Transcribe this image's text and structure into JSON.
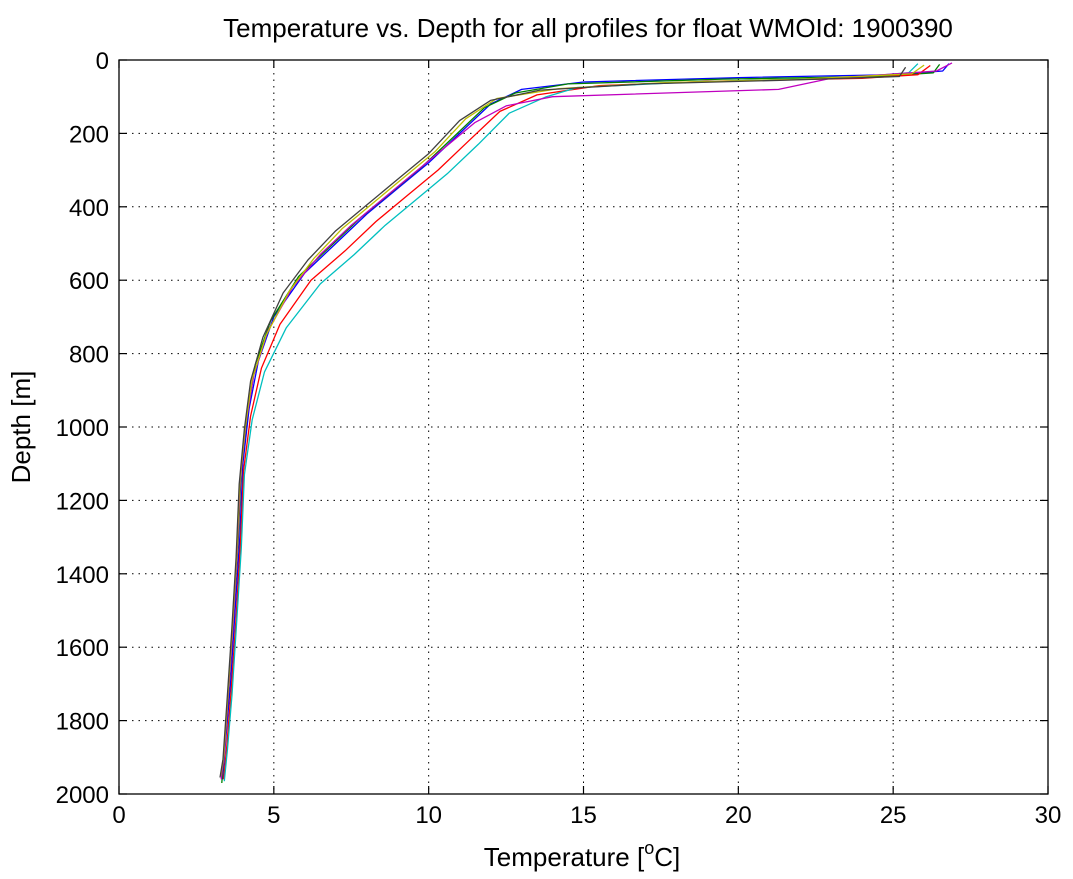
{
  "chart_data": {
    "type": "line",
    "title": "Temperature vs. Depth for all profiles for float WMOId: 1900390",
    "xlabel": "Temperature [",
    "xlabel_sup": "o",
    "xlabel_end": "C]",
    "ylabel": "Depth [m]",
    "xlim": [
      0,
      30
    ],
    "ylim": [
      0,
      2000
    ],
    "y_reversed": true,
    "grid": true,
    "x_ticks": [
      0,
      5,
      10,
      15,
      20,
      25,
      30
    ],
    "y_ticks": [
      0,
      200,
      400,
      600,
      800,
      1000,
      1200,
      1400,
      1600,
      1800,
      2000
    ],
    "x_tick_labels": [
      "0",
      "5",
      "10",
      "15",
      "20",
      "25",
      "30"
    ],
    "y_tick_labels": [
      "0",
      "200",
      "400",
      "600",
      "800",
      "1000",
      "1200",
      "1400",
      "1600",
      "1800",
      "2000"
    ],
    "series_colors": [
      "#0000ff",
      "#008000",
      "#ff0000",
      "#00bfbf",
      "#bf00bf",
      "#bfbf00",
      "#404040"
    ],
    "series": [
      {
        "x": [
          26.8,
          26.6,
          25.0,
          20.0,
          15.0,
          13.0,
          12.0,
          11.0,
          10.0,
          9.0,
          8.0,
          7.0,
          6.0,
          5.0,
          4.5,
          4.2,
          4.0,
          3.9,
          3.75,
          3.6,
          3.45,
          3.35
        ],
        "y": [
          10,
          30,
          40,
          48,
          60,
          80,
          120,
          200,
          280,
          350,
          420,
          500,
          580,
          700,
          820,
          950,
          1100,
          1300,
          1500,
          1700,
          1850,
          1960
        ]
      },
      {
        "x": [
          26.5,
          26.3,
          24.5,
          19.5,
          14.5,
          12.8,
          11.8,
          10.8,
          9.8,
          8.8,
          7.8,
          6.8,
          5.8,
          4.9,
          4.4,
          4.15,
          3.95,
          3.85,
          3.7,
          3.55,
          3.42,
          3.32
        ],
        "y": [
          12,
          35,
          45,
          52,
          65,
          90,
          130,
          210,
          290,
          360,
          430,
          510,
          590,
          710,
          830,
          960,
          1110,
          1310,
          1510,
          1710,
          1860,
          1970
        ]
      },
      {
        "x": [
          26.2,
          25.8,
          24.0,
          19.0,
          15.5,
          13.5,
          12.3,
          11.3,
          10.3,
          9.3,
          8.3,
          7.3,
          6.2,
          5.2,
          4.6,
          4.25,
          4.02,
          3.92,
          3.78,
          3.62,
          3.48,
          3.38
        ],
        "y": [
          15,
          40,
          50,
          58,
          70,
          95,
          140,
          220,
          300,
          370,
          440,
          520,
          600,
          720,
          840,
          970,
          1120,
          1320,
          1520,
          1720,
          1870,
          1960
        ]
      },
      {
        "x": [
          25.8,
          25.5,
          23.5,
          18.5,
          14.8,
          13.8,
          12.6,
          11.6,
          10.6,
          9.6,
          8.6,
          7.6,
          6.5,
          5.4,
          4.7,
          4.3,
          4.05,
          3.95,
          3.8,
          3.65,
          3.5,
          3.4
        ],
        "y": [
          10,
          35,
          48,
          60,
          75,
          100,
          145,
          230,
          310,
          380,
          450,
          530,
          610,
          730,
          850,
          980,
          1130,
          1330,
          1530,
          1730,
          1880,
          1965
        ]
      },
      {
        "x": [
          26.9,
          26.4,
          23.0,
          21.3,
          14.0,
          12.5,
          11.5,
          10.5,
          9.5,
          8.5,
          7.5,
          6.5,
          5.6,
          4.8,
          4.35,
          4.1,
          3.92,
          3.82,
          3.68,
          3.52,
          3.4,
          3.3
        ],
        "y": [
          8,
          30,
          50,
          80,
          100,
          125,
          170,
          240,
          310,
          380,
          450,
          530,
          620,
          740,
          860,
          990,
          1140,
          1340,
          1540,
          1740,
          1890,
          1960
        ]
      },
      {
        "x": [
          26.0,
          25.6,
          22.0,
          17.5,
          14.2,
          12.2,
          11.2,
          10.2,
          9.2,
          8.2,
          7.2,
          6.3,
          5.5,
          4.75,
          4.3,
          4.08,
          3.9,
          3.8,
          3.66,
          3.5,
          3.38,
          3.28
        ],
        "y": [
          14,
          38,
          52,
          62,
          78,
          105,
          160,
          250,
          320,
          390,
          460,
          540,
          630,
          750,
          870,
          1000,
          1150,
          1350,
          1550,
          1750,
          1900,
          1950
        ]
      },
      {
        "x": [
          25.4,
          25.2,
          21.5,
          17.0,
          13.6,
          12.0,
          11.0,
          10.0,
          9.0,
          8.0,
          7.0,
          6.1,
          5.3,
          4.65,
          4.25,
          4.05,
          3.88,
          3.78,
          3.64,
          3.48,
          3.36,
          3.26
        ],
        "y": [
          20,
          45,
          55,
          65,
          82,
          110,
          165,
          255,
          325,
          395,
          465,
          545,
          635,
          755,
          875,
          1005,
          1155,
          1355,
          1555,
          1755,
          1905,
          1955
        ]
      }
    ]
  }
}
